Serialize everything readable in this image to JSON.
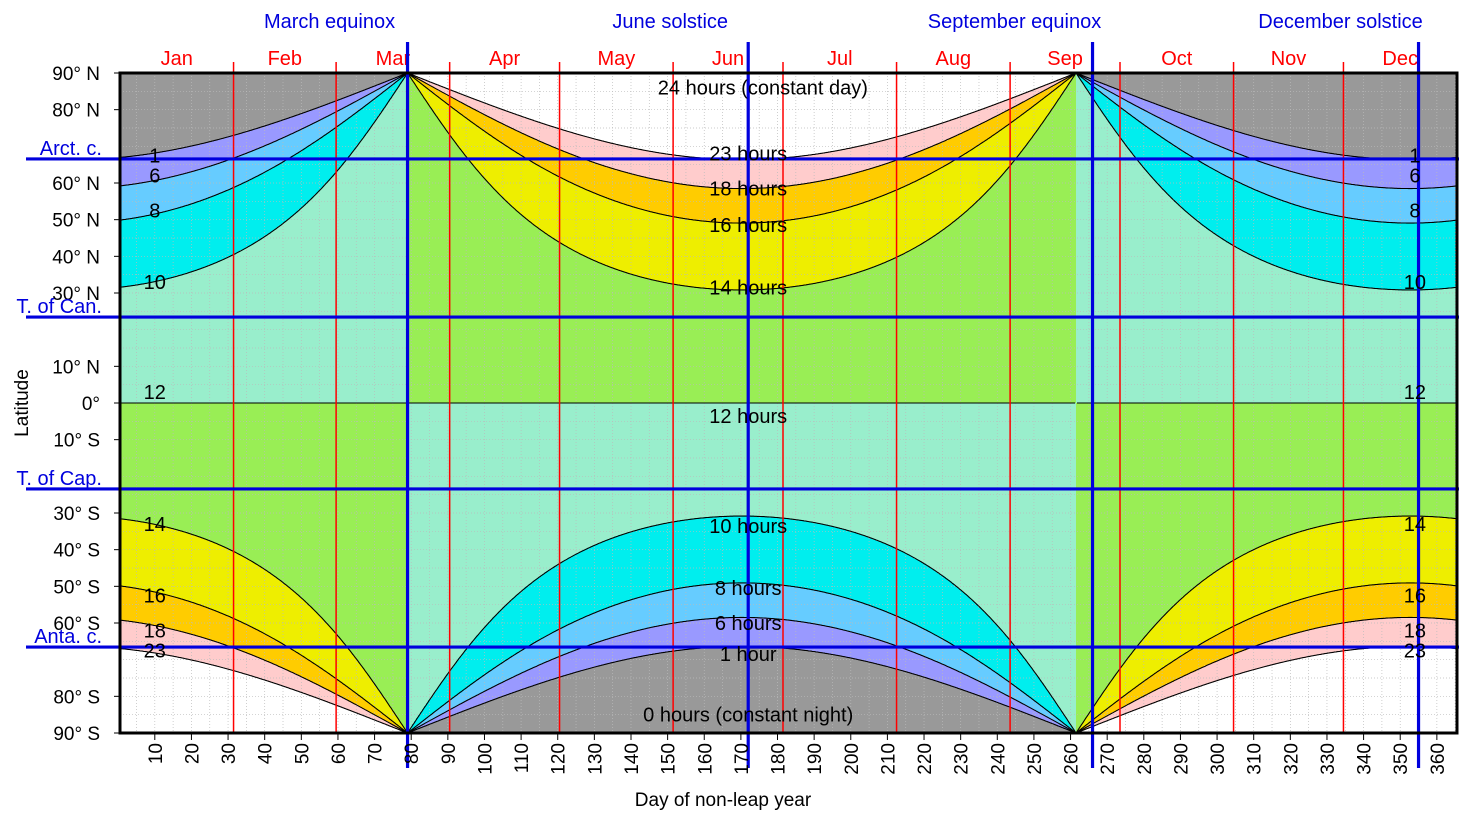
{
  "chart_data": {
    "type": "heatmap",
    "title": "",
    "xlabel": "Day of non-leap year",
    "ylabel": "Latitude",
    "xlim": [
      1,
      365
    ],
    "ylim": [
      -90,
      90
    ],
    "grid": true,
    "axial_tilt_deg": 23.44,
    "x_ticks": [
      10,
      20,
      30,
      40,
      50,
      60,
      70,
      80,
      90,
      100,
      110,
      120,
      130,
      140,
      150,
      160,
      170,
      180,
      190,
      200,
      210,
      220,
      230,
      240,
      250,
      260,
      270,
      280,
      290,
      300,
      310,
      320,
      330,
      340,
      350,
      360
    ],
    "y_ticks": [
      {
        "lat": 90,
        "label": "90° N"
      },
      {
        "lat": 80,
        "label": "80° N"
      },
      {
        "lat": 60,
        "label": "60° N"
      },
      {
        "lat": 50,
        "label": "50° N"
      },
      {
        "lat": 40,
        "label": "40° N"
      },
      {
        "lat": 30,
        "label": "30° N"
      },
      {
        "lat": 10,
        "label": "10° N"
      },
      {
        "lat": 0,
        "label": "0°"
      },
      {
        "lat": -10,
        "label": "10° S"
      },
      {
        "lat": -30,
        "label": "30° S"
      },
      {
        "lat": -40,
        "label": "40° S"
      },
      {
        "lat": -50,
        "label": "50° S"
      },
      {
        "lat": -60,
        "label": "60° S"
      },
      {
        "lat": -80,
        "label": "80° S"
      },
      {
        "lat": -90,
        "label": "90° S"
      }
    ],
    "months": [
      {
        "label": "Jan",
        "start": 1,
        "end": 31
      },
      {
        "label": "Feb",
        "start": 32,
        "end": 59
      },
      {
        "label": "Mar",
        "start": 60,
        "end": 90
      },
      {
        "label": "Apr",
        "start": 91,
        "end": 120
      },
      {
        "label": "May",
        "start": 121,
        "end": 151
      },
      {
        "label": "Jun",
        "start": 152,
        "end": 181
      },
      {
        "label": "Jul",
        "start": 182,
        "end": 212
      },
      {
        "label": "Aug",
        "start": 213,
        "end": 243
      },
      {
        "label": "Sep",
        "start": 244,
        "end": 273
      },
      {
        "label": "Oct",
        "start": 274,
        "end": 304
      },
      {
        "label": "Nov",
        "start": 305,
        "end": 334
      },
      {
        "label": "Dec",
        "start": 335,
        "end": 365
      }
    ],
    "events": [
      {
        "label": "March equinox",
        "day": 79
      },
      {
        "label": "June solstice",
        "day": 172
      },
      {
        "label": "September equinox",
        "day": 266
      },
      {
        "label": "December solstice",
        "day": 355
      }
    ],
    "circles": [
      {
        "label": "Arct. c.",
        "lat": 66.56
      },
      {
        "label": "T. of Can.",
        "lat": 23.44
      },
      {
        "label": "T. of Cap.",
        "lat": -23.44
      },
      {
        "label": "Anta. c.",
        "lat": -66.56
      }
    ],
    "bands": [
      {
        "from": 0,
        "to": 1,
        "color": "#999999"
      },
      {
        "from": 1,
        "to": 6,
        "color": "#9999ff"
      },
      {
        "from": 6,
        "to": 8,
        "color": "#66ccff"
      },
      {
        "from": 8,
        "to": 10,
        "color": "#00eeee"
      },
      {
        "from": 10,
        "to": 12,
        "color": "#99eecc"
      },
      {
        "from": 12,
        "to": 14,
        "color": "#99ee55"
      },
      {
        "from": 14,
        "to": 16,
        "color": "#eeee00"
      },
      {
        "from": 16,
        "to": 18,
        "color": "#ffcc00"
      },
      {
        "from": 18,
        "to": 23,
        "color": "#ffcccc"
      },
      {
        "from": 23,
        "to": 24,
        "color": "#ffffff"
      }
    ],
    "contour_hours": [
      1,
      6,
      8,
      10,
      12,
      14,
      16,
      18,
      23
    ],
    "annotations": [
      {
        "text": "24 hours (constant day)",
        "day": 176,
        "lat": 86
      },
      {
        "text": "23 hours",
        "day": 172,
        "lat": 68
      },
      {
        "text": "18 hours",
        "day": 172,
        "lat": 58.5
      },
      {
        "text": "16 hours",
        "day": 172,
        "lat": 48.5
      },
      {
        "text": "14 hours",
        "day": 172,
        "lat": 31.5
      },
      {
        "text": "12 hours",
        "day": 172,
        "lat": -3.5
      },
      {
        "text": "10 hours",
        "day": 172,
        "lat": -33.5
      },
      {
        "text": "8 hours",
        "day": 172,
        "lat": -50.5
      },
      {
        "text": "6 hours",
        "day": 172,
        "lat": -60
      },
      {
        "text": "1 hour",
        "day": 172,
        "lat": -68.5
      },
      {
        "text": "0 hours (constant night)",
        "day": 172,
        "lat": -85
      },
      {
        "text": "1",
        "day": 10,
        "lat": 67.5
      },
      {
        "text": "6",
        "day": 10,
        "lat": 62
      },
      {
        "text": "8",
        "day": 10,
        "lat": 52.5
      },
      {
        "text": "10",
        "day": 10,
        "lat": 33
      },
      {
        "text": "12",
        "day": 10,
        "lat": 3
      },
      {
        "text": "14",
        "day": 10,
        "lat": -33
      },
      {
        "text": "16",
        "day": 10,
        "lat": -52.5
      },
      {
        "text": "18",
        "day": 10,
        "lat": -62
      },
      {
        "text": "23",
        "day": 10,
        "lat": -67.5
      },
      {
        "text": "1",
        "day": 354,
        "lat": 67.5
      },
      {
        "text": "6",
        "day": 354,
        "lat": 62
      },
      {
        "text": "8",
        "day": 354,
        "lat": 52.5
      },
      {
        "text": "10",
        "day": 354,
        "lat": 33
      },
      {
        "text": "12",
        "day": 354,
        "lat": 3
      },
      {
        "text": "14",
        "day": 354,
        "lat": -33
      },
      {
        "text": "16",
        "day": 354,
        "lat": -52.5
      },
      {
        "text": "18",
        "day": 354,
        "lat": -62
      },
      {
        "text": "23",
        "day": 354,
        "lat": -67.5
      }
    ]
  },
  "colors": {
    "month_line": "#ff0000",
    "month_label": "#ff0000",
    "event_line": "#0000dd",
    "event_label": "#0000dd",
    "grid": "#bbbbbb",
    "contour": "#000000"
  }
}
